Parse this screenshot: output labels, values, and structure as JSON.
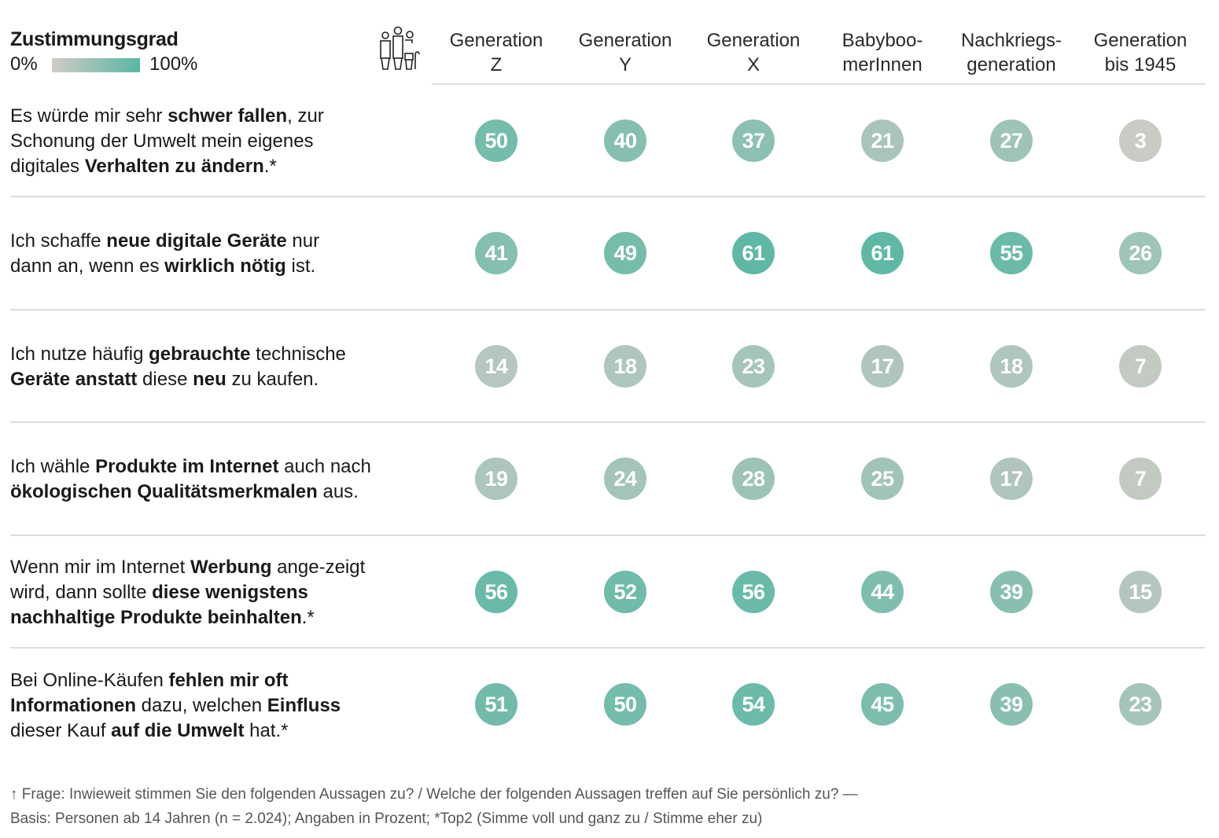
{
  "legend": {
    "title": "Zustimmungsgrad",
    "min_label": "0%",
    "max_label": "100%",
    "color_low": "#cfccc6",
    "color_high": "#59b7a3",
    "icon": "people-generations-icon"
  },
  "chart_data": {
    "type": "table",
    "title": "Zustimmungsgrad",
    "value_unit": "Prozent",
    "color_scale": {
      "range": [
        0,
        100
      ],
      "low": "#cfccc6",
      "high": "#59b7a3"
    },
    "columns": [
      {
        "line1": "Generation",
        "line2": "Z"
      },
      {
        "line1": "Generation",
        "line2": "Y"
      },
      {
        "line1": "Generation",
        "line2": "X"
      },
      {
        "line1": "Babyboo-",
        "line2": "merInnen"
      },
      {
        "line1": "Nachkriegs-",
        "line2": "generation"
      },
      {
        "line1": "Generation",
        "line2": "bis 1945"
      }
    ],
    "rows": [
      {
        "label_parts": [
          {
            "t": "Es würde mir sehr ",
            "b": false
          },
          {
            "t": "schwer fallen",
            "b": true
          },
          {
            "t": ", zur Schonung der Umwelt mein eigenes digitales ",
            "b": false
          },
          {
            "t": "Verhalten zu ändern",
            "b": true
          },
          {
            "t": ".*",
            "b": false
          }
        ],
        "values": [
          50,
          40,
          37,
          21,
          27,
          3
        ]
      },
      {
        "label_parts": [
          {
            "t": "Ich schaffe ",
            "b": false
          },
          {
            "t": "neue digitale Geräte",
            "b": true
          },
          {
            "t": " nur dann an, wenn es ",
            "b": false
          },
          {
            "t": "wirklich nötig",
            "b": true
          },
          {
            "t": " ist.",
            "b": false
          }
        ],
        "values": [
          41,
          49,
          61,
          61,
          55,
          26
        ]
      },
      {
        "label_parts": [
          {
            "t": "Ich nutze häufig ",
            "b": false
          },
          {
            "t": "gebrauchte",
            "b": true
          },
          {
            "t": " technische ",
            "b": false
          },
          {
            "t": "Geräte anstatt",
            "b": true
          },
          {
            "t": " diese ",
            "b": false
          },
          {
            "t": "neu",
            "b": true
          },
          {
            "t": " zu kaufen.",
            "b": false
          }
        ],
        "values": [
          14,
          18,
          23,
          17,
          18,
          7
        ]
      },
      {
        "label_parts": [
          {
            "t": "Ich wähle ",
            "b": false
          },
          {
            "t": "Produkte im Internet",
            "b": true
          },
          {
            "t": " auch nach ",
            "b": false
          },
          {
            "t": "ökologischen Qualitätsmerkmalen",
            "b": true
          },
          {
            "t": " aus.",
            "b": false
          }
        ],
        "values": [
          19,
          24,
          28,
          25,
          17,
          7
        ]
      },
      {
        "label_parts": [
          {
            "t": "Wenn mir im Internet ",
            "b": false
          },
          {
            "t": "Werbung",
            "b": true
          },
          {
            "t": " ange-zeigt wird, dann sollte ",
            "b": false
          },
          {
            "t": "diese wenigstens nachhaltige Produkte beinhalten",
            "b": true
          },
          {
            "t": ".*",
            "b": false
          }
        ],
        "values": [
          56,
          52,
          56,
          44,
          39,
          15
        ]
      },
      {
        "label_parts": [
          {
            "t": "Bei Online-Käufen ",
            "b": false
          },
          {
            "t": "fehlen mir oft Informationen",
            "b": true
          },
          {
            "t": " dazu, welchen ",
            "b": false
          },
          {
            "t": "Einfluss",
            "b": true
          },
          {
            "t": " dieser Kauf ",
            "b": false
          },
          {
            "t": "auf die Umwelt",
            "b": true
          },
          {
            "t": " hat.*",
            "b": false
          }
        ],
        "values": [
          51,
          50,
          54,
          45,
          39,
          23
        ]
      }
    ]
  },
  "footnote": {
    "line1": "↑ Frage: Inwieweit stimmen Sie den folgenden Aussagen zu? / Welche der folgenden Aussagen treffen auf Sie persönlich zu? —",
    "line2": "Basis: Personen ab 14 Jahren (n = 2.024); Angaben in Prozent; *Top2 (Simme voll und ganz zu / Stimme eher zu)"
  }
}
